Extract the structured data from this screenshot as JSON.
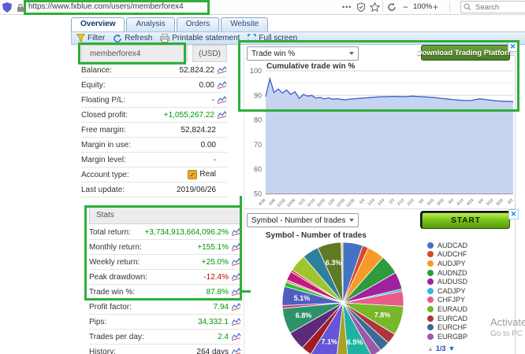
{
  "browser": {
    "url": "https://www.fxblue.com/users/memberforex4",
    "more_label": "•••",
    "zoom_out": "−",
    "zoom_level": "100%",
    "zoom_in": "+",
    "search_placeholder": "Search"
  },
  "tabs": [
    {
      "label": "Overview",
      "active": true
    },
    {
      "label": "Analysis",
      "active": false
    },
    {
      "label": "Orders",
      "active": false
    },
    {
      "label": "Website",
      "active": false
    }
  ],
  "toolbar": {
    "items": [
      {
        "label": "Filter",
        "icon": "filter-icon"
      },
      {
        "label": "Refresh",
        "icon": "refresh-icon"
      },
      {
        "label": "Printable statement",
        "icon": "printer-icon"
      },
      {
        "label": "Full screen",
        "icon": "fullscreen-icon"
      }
    ]
  },
  "account_panel": {
    "name": "memberforex4",
    "currency": "(USD)",
    "rows": [
      {
        "label": "Balance:",
        "value": "52,824.22",
        "color": "plain",
        "chart_icon": true
      },
      {
        "label": "Equity:",
        "value": "0.00",
        "color": "plain",
        "chart_icon": true
      },
      {
        "label": "Floating P/L:",
        "value": "-",
        "color": "plain",
        "chart_icon": true
      },
      {
        "label": "Closed profit:",
        "value": "+1,055,267.22",
        "color": "pos",
        "chart_icon": true
      },
      {
        "label": "Free margin:",
        "value": "52,824.22",
        "color": "plain",
        "chart_icon": false
      },
      {
        "label": "Margin in use:",
        "value": "0.00",
        "color": "plain",
        "chart_icon": false
      },
      {
        "label": "Margin level:",
        "value": "-",
        "color": "plain",
        "chart_icon": false
      },
      {
        "label": "Account type:",
        "value": "Real",
        "color": "plain",
        "chart_icon": false,
        "checkbox": true
      },
      {
        "label": "Last update:",
        "value": "2019/06/26",
        "color": "plain",
        "chart_icon": false
      }
    ]
  },
  "stats_panel": {
    "title": "Stats",
    "rows": [
      {
        "label": "Total return:",
        "value": "+3,734,913,664,096.2%",
        "color": "pos",
        "chart_icon": true
      },
      {
        "label": "Monthly return:",
        "value": "+155.1%",
        "color": "pos",
        "chart_icon": true
      },
      {
        "label": "Weekly return:",
        "value": "+25.0%",
        "color": "pos",
        "chart_icon": true
      },
      {
        "label": "Peak drawdown:",
        "value": "-12.4%",
        "color": "neg",
        "chart_icon": true
      },
      {
        "label": "Trade win %:",
        "value": "87.8%",
        "color": "pos",
        "chart_icon": true
      },
      {
        "label": "Profit factor:",
        "value": "7.94",
        "color": "pos",
        "chart_icon": true
      },
      {
        "label": "Pips:",
        "value": "34,332.1",
        "color": "pos",
        "chart_icon": true
      },
      {
        "label": "Trades per day:",
        "value": "2.4",
        "color": "pos",
        "chart_icon": true
      },
      {
        "label": "History:",
        "value": "264 days",
        "color": "plain",
        "chart_icon": true
      }
    ]
  },
  "charts_section": {
    "top_select": "Trade win %",
    "download_button": "Download Trading Platform",
    "close_x": "✕",
    "bottom_select": "Symbol - Number of trades",
    "start_button": "START",
    "legend_pagination": "1/3"
  },
  "watermark": {
    "line1": "Activate",
    "line2": "Go to PC s"
  },
  "chart_data": [
    {
      "type": "area",
      "title": "Cumulative trade win %",
      "ylabel": "",
      "ylim": [
        50,
        100
      ],
      "yticks": [
        100,
        90,
        80,
        70,
        60,
        50
      ],
      "grid": true,
      "line_color": "#3b5fc4",
      "fill_color": "#c7d4f0",
      "values": [
        89.5,
        96.8,
        91.2,
        92.6,
        91.0,
        92.2,
        90.4,
        91.5,
        88.8,
        90.4,
        89.7,
        90.0,
        88.9,
        89.2,
        88.6,
        89.0,
        88.4,
        88.7,
        88.4,
        88.2,
        88.5,
        88.6,
        88.8,
        88.9,
        89.0,
        89.2,
        89.3,
        89.4,
        89.5,
        89.5,
        89.6,
        89.6,
        89.5,
        89.5,
        89.6,
        89.7,
        89.6,
        89.5,
        89.4,
        89.3,
        89.2,
        89.0,
        88.8,
        88.6,
        88.4,
        88.2,
        88.1,
        88.0,
        87.9,
        88.0,
        88.3,
        88.6,
        88.4,
        88.2,
        88.0,
        87.8,
        87.7,
        87.6,
        87.6,
        87.5
      ],
      "x_tick_labels": [
        "9/26",
        "10/6",
        "10/16",
        "10/26",
        "11/5",
        "11/15",
        "11/25",
        "12/5",
        "12/15",
        "12/25",
        "1/4",
        "1/14",
        "1/24",
        "2/3",
        "2/13",
        "2/23",
        "3/5",
        "3/15",
        "3/25",
        "4/4",
        "4/14",
        "4/24",
        "5/4",
        "5/14",
        "5/24",
        "6/3"
      ]
    },
    {
      "type": "pie",
      "title": "Symbol - Number of trades",
      "slices": [
        {
          "value": 5.3,
          "color": "#4472c4"
        },
        {
          "value": 1.6,
          "color": "#d9472a"
        },
        {
          "value": 4.6,
          "color": "#f79a28"
        },
        {
          "value": 5.2,
          "color": "#2e9b3d"
        },
        {
          "value": 4.6,
          "color": "#a0219d"
        },
        {
          "value": 0.6,
          "color": "#35b8d8"
        },
        {
          "value": 4.0,
          "color": "#e85c8a"
        },
        {
          "value": 7.8,
          "color": "#76b82a",
          "label": "7.8%"
        },
        {
          "value": 2.8,
          "color": "#b13439"
        },
        {
          "value": 2.8,
          "color": "#3a6b96"
        },
        {
          "value": 2.8,
          "color": "#9c59a8"
        },
        {
          "value": 6.5,
          "color": "#1fb2a2",
          "label": "6.5%"
        },
        {
          "value": 3.2,
          "color": "#a8a226"
        },
        {
          "value": 7.1,
          "color": "#6456d6",
          "label": "7.1%"
        },
        {
          "value": 2.8,
          "color": "#a01c24"
        },
        {
          "value": 5.0,
          "color": "#5d2a7a"
        },
        {
          "value": 6.8,
          "color": "#2f9168",
          "label": "6.8%"
        },
        {
          "value": 0.8,
          "color": "#c43a7a"
        },
        {
          "value": 5.1,
          "color": "#4f5fc0",
          "label": "5.1%"
        },
        {
          "value": 1.2,
          "color": "#22c32a"
        },
        {
          "value": 0.6,
          "color": "#e87ca0"
        },
        {
          "value": 2.4,
          "color": "#c2187c"
        },
        {
          "value": 0.6,
          "color": "#d8404c"
        },
        {
          "value": 4.6,
          "color": "#9ec52e"
        },
        {
          "value": 4.4,
          "color": "#2e7f99"
        },
        {
          "value": 6.3,
          "color": "#5f7a23",
          "label": "6.3%"
        },
        {
          "value": 0.5,
          "color": "#e8d44c"
        }
      ],
      "legend": [
        {
          "label": "AUDCAD",
          "color": "#4472c4"
        },
        {
          "label": "AUDCHF",
          "color": "#d9472a"
        },
        {
          "label": "AUDJPY",
          "color": "#f79a28"
        },
        {
          "label": "AUDNZD",
          "color": "#2e9b3d"
        },
        {
          "label": "AUDUSD",
          "color": "#a0219d"
        },
        {
          "label": "CADJPY",
          "color": "#35b8d8"
        },
        {
          "label": "CHFJPY",
          "color": "#e85c8a"
        },
        {
          "label": "EURAUD",
          "color": "#76b82a"
        },
        {
          "label": "EURCAD",
          "color": "#b13439"
        },
        {
          "label": "EURCHF",
          "color": "#3a6b96"
        },
        {
          "label": "EURGBP",
          "color": "#9c59a8"
        }
      ],
      "legend_position": "right"
    }
  ],
  "colors": {
    "annotation_green": "#2daf3a",
    "positive": "#009900",
    "negative": "#cc0000",
    "download_button_green": "#4d7a25",
    "start_button_green": "#79c41c"
  }
}
